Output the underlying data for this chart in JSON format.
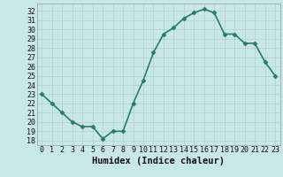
{
  "x": [
    0,
    1,
    2,
    3,
    4,
    5,
    6,
    7,
    8,
    9,
    10,
    11,
    12,
    13,
    14,
    15,
    16,
    17,
    18,
    19,
    20,
    21,
    22,
    23
  ],
  "y": [
    23,
    22,
    21,
    20,
    19.5,
    19.5,
    18.2,
    19,
    19,
    22,
    24.5,
    27.5,
    29.5,
    30.2,
    31.2,
    31.8,
    32.2,
    31.8,
    29.5,
    29.5,
    28.5,
    28.5,
    26.5,
    25
  ],
  "line_color": "#2d7a6b",
  "marker": "D",
  "marker_size": 2.5,
  "bg_color": "#c8e8e8",
  "grid_color": "#b0d0d0",
  "xlabel": "Humidex (Indice chaleur)",
  "xlabel_fontsize": 7.5,
  "ylabel_ticks": [
    18,
    19,
    20,
    21,
    22,
    23,
    24,
    25,
    26,
    27,
    28,
    29,
    30,
    31,
    32
  ],
  "xlim": [
    -0.5,
    23.5
  ],
  "ylim": [
    17.5,
    32.8
  ],
  "xtick_labels": [
    "0",
    "1",
    "2",
    "3",
    "4",
    "5",
    "6",
    "7",
    "8",
    "9",
    "10",
    "11",
    "12",
    "13",
    "14",
    "15",
    "16",
    "17",
    "18",
    "19",
    "20",
    "21",
    "22",
    "23"
  ],
  "tick_fontsize": 6,
  "linewidth": 1.2
}
